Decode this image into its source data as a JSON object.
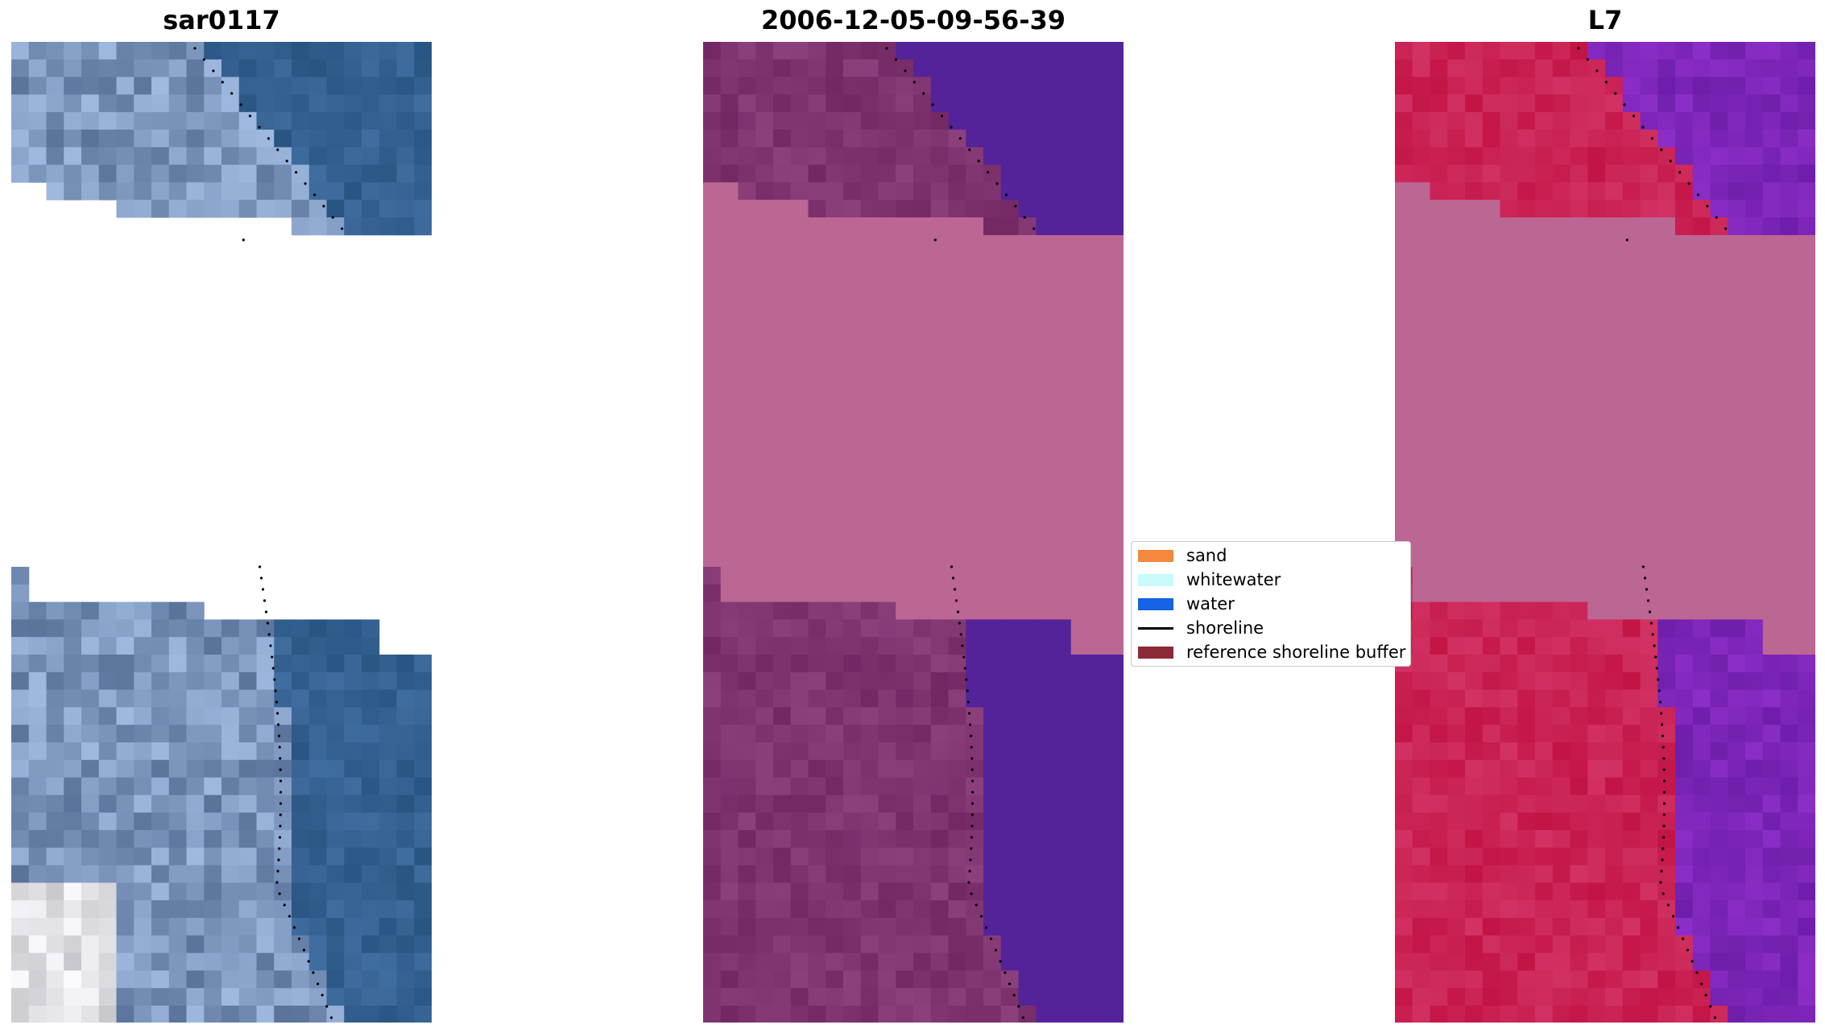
{
  "panels": [
    {
      "title": "sar0117",
      "kind": "rgb"
    },
    {
      "title": "2006-12-05-09-56-39",
      "kind": "classified"
    },
    {
      "title": "L7",
      "kind": "index"
    }
  ],
  "legend": {
    "items": [
      {
        "label": "sand",
        "color": "#f4883c",
        "type": "patch"
      },
      {
        "label": "whitewater",
        "color": "#c8fafa",
        "type": "patch"
      },
      {
        "label": "water",
        "color": "#1462e6",
        "type": "patch"
      },
      {
        "label": "shoreline",
        "color": "#000000",
        "type": "line"
      },
      {
        "label": "reference shoreline buffer",
        "color": "#8c2a35",
        "type": "patch"
      }
    ]
  },
  "colors": {
    "nodata_pink": "#bc6694",
    "water_purple": "#54239a",
    "shoreline_dots": "#000000"
  }
}
